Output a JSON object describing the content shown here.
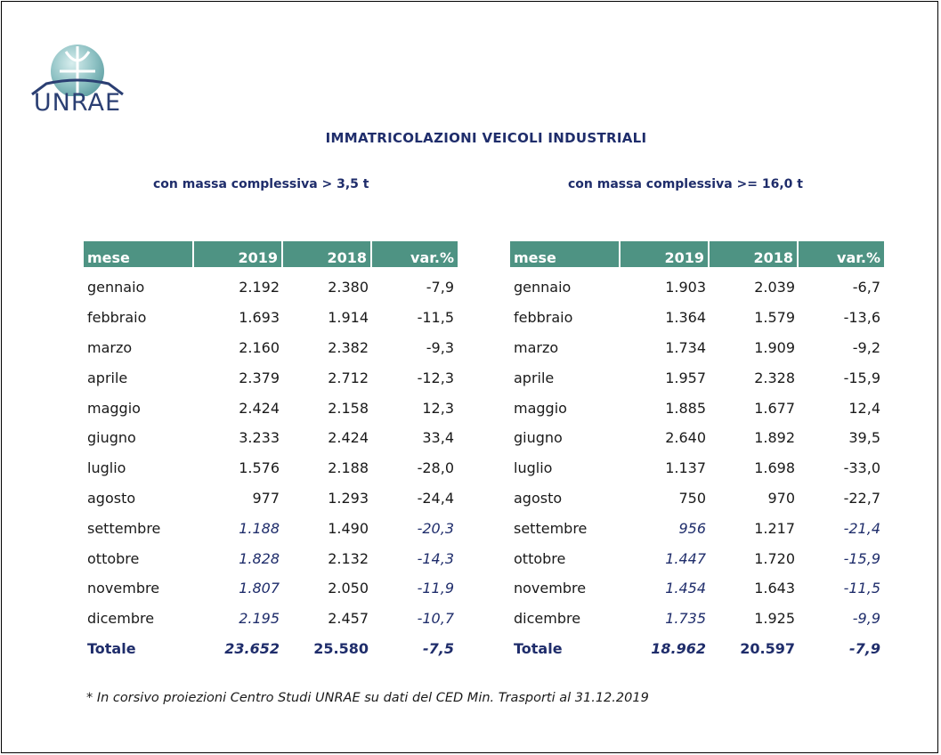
{
  "logo": {
    "text": "UNRAE"
  },
  "title": "IMMATRICOLAZIONI VEICOLI INDUSTRIALI",
  "left_table": {
    "subtitle": "con massa complessiva > 3,5 t",
    "headers": [
      "mese",
      "2019",
      "2018",
      "var.%"
    ],
    "rows": [
      {
        "mese": "gennaio",
        "y2019": "2.192",
        "y2018": "2.380",
        "var": "-7,9",
        "projected": false
      },
      {
        "mese": "febbraio",
        "y2019": "1.693",
        "y2018": "1.914",
        "var": "-11,5",
        "projected": false
      },
      {
        "mese": "marzo",
        "y2019": "2.160",
        "y2018": "2.382",
        "var": "-9,3",
        "projected": false
      },
      {
        "mese": "aprile",
        "y2019": "2.379",
        "y2018": "2.712",
        "var": "-12,3",
        "projected": false
      },
      {
        "mese": "maggio",
        "y2019": "2.424",
        "y2018": "2.158",
        "var": "12,3",
        "projected": false
      },
      {
        "mese": "giugno",
        "y2019": "3.233",
        "y2018": "2.424",
        "var": "33,4",
        "projected": false
      },
      {
        "mese": "luglio",
        "y2019": "1.576",
        "y2018": "2.188",
        "var": "-28,0",
        "projected": false
      },
      {
        "mese": "agosto",
        "y2019": "977",
        "y2018": "1.293",
        "var": "-24,4",
        "projected": false
      },
      {
        "mese": "settembre",
        "y2019": "1.188",
        "y2018": "1.490",
        "var": "-20,3",
        "projected": true
      },
      {
        "mese": "ottobre",
        "y2019": "1.828",
        "y2018": "2.132",
        "var": "-14,3",
        "projected": true
      },
      {
        "mese": "novembre",
        "y2019": "1.807",
        "y2018": "2.050",
        "var": "-11,9",
        "projected": true
      },
      {
        "mese": "dicembre",
        "y2019": "2.195",
        "y2018": "2.457",
        "var": "-10,7",
        "projected": true
      }
    ],
    "total": {
      "mese": "Totale",
      "y2019": "23.652",
      "y2018": "25.580",
      "var": "-7,5"
    }
  },
  "right_table": {
    "subtitle": "con massa complessiva >= 16,0 t",
    "headers": [
      "mese",
      "2019",
      "2018",
      "var.%"
    ],
    "rows": [
      {
        "mese": "gennaio",
        "y2019": "1.903",
        "y2018": "2.039",
        "var": "-6,7",
        "projected": false
      },
      {
        "mese": "febbraio",
        "y2019": "1.364",
        "y2018": "1.579",
        "var": "-13,6",
        "projected": false
      },
      {
        "mese": "marzo",
        "y2019": "1.734",
        "y2018": "1.909",
        "var": "-9,2",
        "projected": false
      },
      {
        "mese": "aprile",
        "y2019": "1.957",
        "y2018": "2.328",
        "var": "-15,9",
        "projected": false
      },
      {
        "mese": "maggio",
        "y2019": "1.885",
        "y2018": "1.677",
        "var": "12,4",
        "projected": false
      },
      {
        "mese": "giugno",
        "y2019": "2.640",
        "y2018": "1.892",
        "var": "39,5",
        "projected": false
      },
      {
        "mese": "luglio",
        "y2019": "1.137",
        "y2018": "1.698",
        "var": "-33,0",
        "projected": false
      },
      {
        "mese": "agosto",
        "y2019": "750",
        "y2018": "970",
        "var": "-22,7",
        "projected": false
      },
      {
        "mese": "settembre",
        "y2019": "956",
        "y2018": "1.217",
        "var": "-21,4",
        "projected": true
      },
      {
        "mese": "ottobre",
        "y2019": "1.447",
        "y2018": "1.720",
        "var": "-15,9",
        "projected": true
      },
      {
        "mese": "novembre",
        "y2019": "1.454",
        "y2018": "1.643",
        "var": "-11,5",
        "projected": true
      },
      {
        "mese": "dicembre",
        "y2019": "1.735",
        "y2018": "1.925",
        "var": "-9,9",
        "projected": true
      }
    ],
    "total": {
      "mese": "Totale",
      "y2019": "18.962",
      "y2018": "20.597",
      "var": "-7,9"
    }
  },
  "footnote": "* In corsivo proiezioni Centro Studi UNRAE su dati del CED Min. Trasporti al 31.12.2019",
  "colors": {
    "header_bg": "#4e9383",
    "title": "#1f2d6b",
    "logo": "#2b3f73"
  }
}
